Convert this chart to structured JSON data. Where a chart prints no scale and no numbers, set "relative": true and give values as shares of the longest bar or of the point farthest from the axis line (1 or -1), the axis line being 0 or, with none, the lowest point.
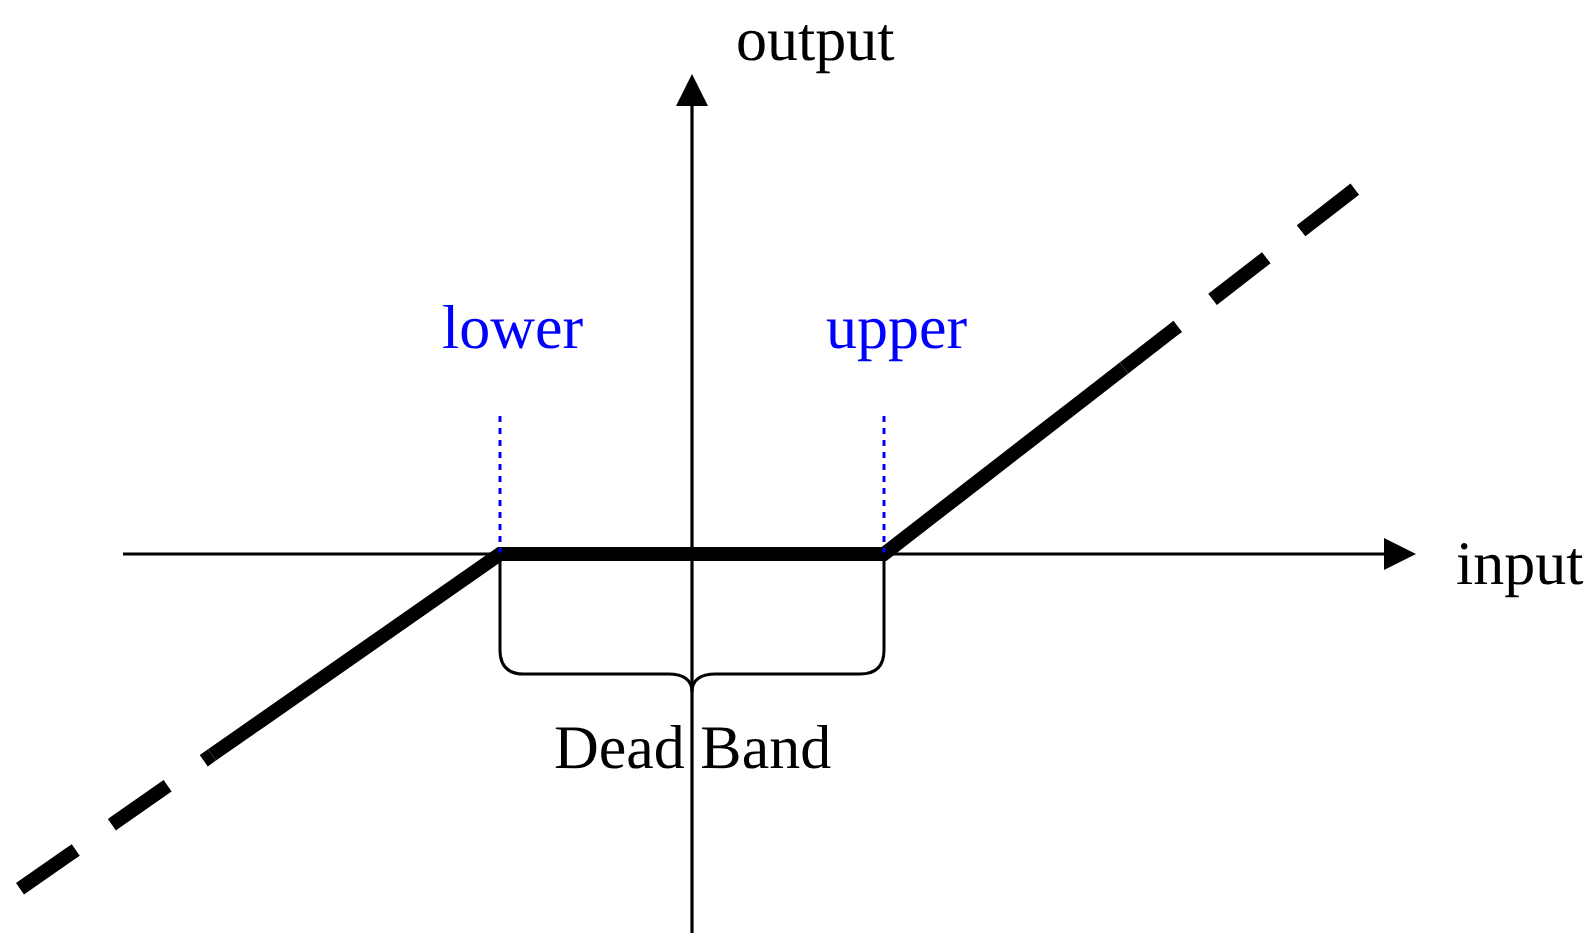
{
  "chart_data": {
    "type": "line",
    "relative": true,
    "categories": [
      null,
      null,
      null,
      null,
      null,
      null,
      null,
      null,
      null,
      null,
      null,
      null,
      null,
      null,
      null,
      null,
      null,
      null,
      null,
      null,
      null,
      null,
      null,
      null,
      null,
      null,
      null,
      null,
      null
    ],
    "xlabel": "input",
    "ylabel": "output",
    "annotations": [
      "lower",
      "upper",
      "Dead Band"
    ],
    "series": [
      {
        "color": "#000000",
        "line_style": "dashed",
        "values": [
          -0.9,
          -0.81,
          -0.72,
          -0.63,
          -0.54,
          null,
          null,
          null,
          null,
          null,
          null,
          null,
          null,
          null,
          null,
          null,
          null,
          null,
          null,
          null,
          null,
          null,
          null,
          null,
          null,
          null,
          null,
          null,
          null
        ]
      },
      {
        "color": "#000000",
        "line_style": "solid",
        "values": [
          null,
          null,
          null,
          null,
          -0.54,
          -0.45,
          -0.36,
          -0.27,
          -0.18,
          -0.09,
          0,
          0,
          0,
          0,
          0,
          0,
          0,
          0,
          0,
          0.1,
          0.2,
          0.3,
          0.4,
          0.5,
          null,
          null,
          null,
          null,
          null
        ]
      },
      {
        "color": "#000000",
        "line_style": "dashed",
        "values": [
          null,
          null,
          null,
          null,
          null,
          null,
          null,
          null,
          null,
          null,
          null,
          null,
          null,
          null,
          null,
          null,
          null,
          null,
          null,
          null,
          null,
          null,
          null,
          0.5,
          0.6,
          0.7,
          0.8,
          0.9,
          1.0
        ]
      }
    ],
    "marker": "none",
    "tick_labels": false
  }
}
